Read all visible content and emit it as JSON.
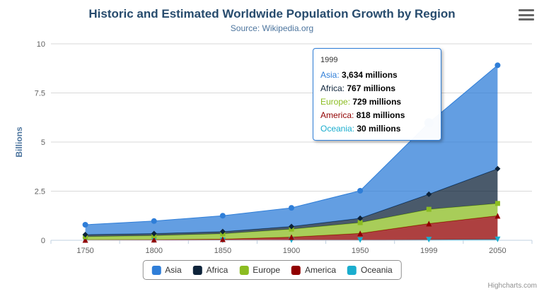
{
  "icons": {
    "menu": "hamburger-menu-icon"
  },
  "credits": "Highcharts.com",
  "chart_data": {
    "type": "area",
    "stacked": true,
    "title": "Historic and Estimated Worldwide Population Growth by Region",
    "subtitle": "Source: Wikipedia.org",
    "ylabel": "Billions",
    "xlabel": "",
    "unit": "millions",
    "ylim": [
      0,
      10
    ],
    "yticks": [
      0,
      2.5,
      5,
      7.5,
      10
    ],
    "grid": true,
    "legend_position": "bottom",
    "categories": [
      "1750",
      "1800",
      "1850",
      "1900",
      "1950",
      "1999",
      "2050"
    ],
    "series": [
      {
        "name": "Asia",
        "color": "#2f7ed8",
        "marker": "circle",
        "values": [
          502,
          635,
          809,
          947,
          1402,
          3634,
          5268
        ]
      },
      {
        "name": "Africa",
        "color": "#0d233a",
        "marker": "diamond",
        "values": [
          106,
          107,
          111,
          133,
          221,
          767,
          1766
        ]
      },
      {
        "name": "Europe",
        "color": "#8bbc21",
        "marker": "square",
        "values": [
          163,
          203,
          276,
          408,
          547,
          729,
          628
        ]
      },
      {
        "name": "America",
        "color": "#910000",
        "marker": "triangle",
        "values": [
          18,
          31,
          54,
          156,
          339,
          818,
          1201
        ]
      },
      {
        "name": "Oceania",
        "color": "#1aadce",
        "marker": "triangle-down",
        "values": [
          2,
          2,
          2,
          6,
          13,
          30,
          46
        ]
      }
    ],
    "legend": [
      "Asia",
      "Africa",
      "Europe",
      "America",
      "Oceania"
    ],
    "hover": {
      "series": "Asia",
      "category": "1999"
    },
    "tooltip": {
      "category": "1999",
      "suffix": "millions",
      "rows": [
        {
          "name": "Asia",
          "value": "3,634"
        },
        {
          "name": "Africa",
          "value": "767"
        },
        {
          "name": "Europe",
          "value": "729"
        },
        {
          "name": "America",
          "value": "818"
        },
        {
          "name": "Oceania",
          "value": "30"
        }
      ]
    }
  }
}
